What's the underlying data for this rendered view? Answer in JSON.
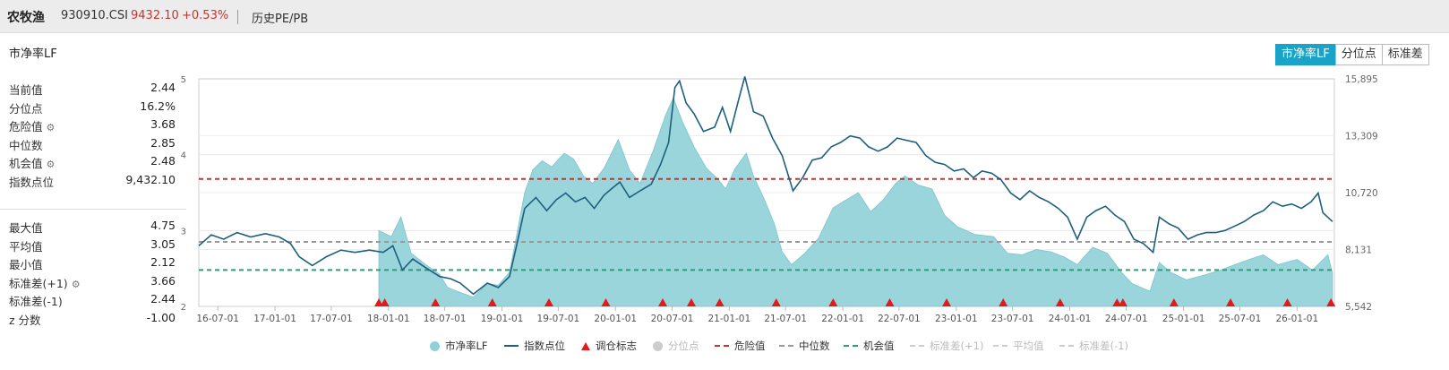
{
  "header": {
    "index_name": "农牧渔",
    "index_code": "930910.CSI",
    "price": "9432.10",
    "change": "+0.53%",
    "history_label": "历史PE/PB"
  },
  "page_title": "市净率LF",
  "tabs": [
    {
      "label": "市净率LF",
      "active": true
    },
    {
      "label": "分位点",
      "active": false
    },
    {
      "label": "标准差",
      "active": false
    }
  ],
  "stats_top": [
    {
      "label": "当前值",
      "value": "2.44",
      "gear": false
    },
    {
      "label": "分位点",
      "value": "16.2%",
      "gear": false
    },
    {
      "label": "危险值",
      "value": "3.68",
      "gear": true
    },
    {
      "label": "中位数",
      "value": "2.85",
      "gear": false
    },
    {
      "label": "机会值",
      "value": "2.48",
      "gear": true
    },
    {
      "label": "指数点位",
      "value": "9,432.10",
      "gear": false
    }
  ],
  "stats_bottom": [
    {
      "label": "最大值",
      "value": "4.75",
      "gear": false
    },
    {
      "label": "平均值",
      "value": "3.05",
      "gear": false
    },
    {
      "label": "最小值",
      "value": "2.12",
      "gear": false
    },
    {
      "label": "标准差(+1)",
      "value": "3.66",
      "gear": true
    },
    {
      "label": "标准差(-1)",
      "value": "2.44",
      "gear": false
    },
    {
      "label": "z 分数",
      "value": "-1.00",
      "gear": false
    }
  ],
  "gear_glyph": "⚙",
  "chart_data": {
    "type": "line",
    "x_ticks": [
      "16-07-01",
      "17-01-01",
      "17-07-01",
      "18-01-01",
      "18-07-01",
      "19-01-01",
      "19-07-01",
      "20-01-01",
      "20-07-01",
      "21-01-01",
      "21-07-01",
      "22-01-01",
      "22-07-01",
      "23-01-01",
      "23-07-01",
      "24-01-01",
      "24-07-01",
      "25-01-01",
      "25-07-01",
      "26-01-01"
    ],
    "x_range": [
      "2016-05-01",
      "2026-05-01"
    ],
    "y_left_ticks": [
      "5",
      "4",
      "3",
      "2"
    ],
    "y_left_range": [
      2,
      5
    ],
    "y_right_ticks": [
      "15,895",
      "13,309",
      "10,720",
      "8,131",
      "5,542"
    ],
    "y_right_range": [
      5542,
      15895
    ],
    "reference_lines": [
      {
        "name": "危险值",
        "value": 3.68,
        "color": "#c23531"
      },
      {
        "name": "中位数",
        "value": 2.85,
        "color": "#999999"
      },
      {
        "name": "机会值",
        "value": 2.48,
        "color": "#2e9f74"
      }
    ],
    "pb_series": {
      "name": "市净率LF",
      "color": "#8fd0d8",
      "points": [
        [
          "2017-12-01",
          3.0
        ],
        [
          "2018-01-10",
          2.92
        ],
        [
          "2018-02-10",
          3.18
        ],
        [
          "2018-03-15",
          2.7
        ],
        [
          "2018-05-01",
          2.55
        ],
        [
          "2018-06-15",
          2.42
        ],
        [
          "2018-07-10",
          2.25
        ],
        [
          "2018-08-10",
          2.2
        ],
        [
          "2018-10-01",
          2.12
        ],
        [
          "2018-11-15",
          2.3
        ],
        [
          "2018-12-20",
          2.28
        ],
        [
          "2019-01-25",
          2.45
        ],
        [
          "2019-02-20",
          3.0
        ],
        [
          "2019-03-15",
          3.5
        ],
        [
          "2019-04-10",
          3.8
        ],
        [
          "2019-05-10",
          3.92
        ],
        [
          "2019-06-10",
          3.84
        ],
        [
          "2019-07-20",
          4.02
        ],
        [
          "2019-08-20",
          3.94
        ],
        [
          "2019-09-20",
          3.72
        ],
        [
          "2019-10-20",
          3.62
        ],
        [
          "2019-11-25",
          3.82
        ],
        [
          "2020-01-10",
          4.2
        ],
        [
          "2020-02-15",
          3.8
        ],
        [
          "2020-03-20",
          3.62
        ],
        [
          "2020-05-01",
          4.05
        ],
        [
          "2020-06-10",
          4.52
        ],
        [
          "2020-07-05",
          4.75
        ],
        [
          "2020-08-05",
          4.42
        ],
        [
          "2020-09-10",
          4.1
        ],
        [
          "2020-10-20",
          3.82
        ],
        [
          "2020-11-25",
          3.68
        ],
        [
          "2020-12-20",
          3.55
        ],
        [
          "2021-01-20",
          3.82
        ],
        [
          "2021-02-25",
          4.02
        ],
        [
          "2021-03-20",
          3.72
        ],
        [
          "2021-04-25",
          3.4
        ],
        [
          "2021-05-25",
          3.1
        ],
        [
          "2021-06-20",
          2.72
        ],
        [
          "2021-07-20",
          2.55
        ],
        [
          "2021-09-01",
          2.7
        ],
        [
          "2021-10-15",
          2.9
        ],
        [
          "2021-12-01",
          3.3
        ],
        [
          "2022-01-10",
          3.4
        ],
        [
          "2022-02-20",
          3.5
        ],
        [
          "2022-04-01",
          3.25
        ],
        [
          "2022-05-10",
          3.4
        ],
        [
          "2022-06-20",
          3.62
        ],
        [
          "2022-07-20",
          3.72
        ],
        [
          "2022-09-01",
          3.6
        ],
        [
          "2022-10-15",
          3.55
        ],
        [
          "2022-11-25",
          3.2
        ],
        [
          "2023-01-05",
          3.05
        ],
        [
          "2023-03-01",
          2.95
        ],
        [
          "2023-05-01",
          2.92
        ],
        [
          "2023-06-15",
          2.7
        ],
        [
          "2023-08-01",
          2.68
        ],
        [
          "2023-09-15",
          2.75
        ],
        [
          "2023-11-01",
          2.72
        ],
        [
          "2023-12-15",
          2.65
        ],
        [
          "2024-01-25",
          2.55
        ],
        [
          "2024-03-15",
          2.78
        ],
        [
          "2024-05-01",
          2.7
        ],
        [
          "2024-06-15",
          2.45
        ],
        [
          "2024-07-20",
          2.3
        ],
        [
          "2024-09-15",
          2.2
        ],
        [
          "2024-10-15",
          2.58
        ],
        [
          "2024-11-20",
          2.45
        ],
        [
          "2025-01-10",
          2.35
        ],
        [
          "2025-03-15",
          2.42
        ],
        [
          "2025-05-01",
          2.48
        ],
        [
          "2025-06-15",
          2.55
        ],
        [
          "2025-08-01",
          2.62
        ],
        [
          "2025-09-15",
          2.68
        ],
        [
          "2025-11-01",
          2.55
        ],
        [
          "2026-01-01",
          2.62
        ],
        [
          "2026-02-20",
          2.48
        ],
        [
          "2026-04-10",
          2.68
        ],
        [
          "2026-04-25",
          2.44
        ]
      ]
    },
    "index_series": {
      "name": "指数点位",
      "color": "#1d5f7e",
      "points": [
        [
          "2016-05-01",
          8300
        ],
        [
          "2016-06-10",
          8800
        ],
        [
          "2016-07-20",
          8600
        ],
        [
          "2016-09-01",
          8900
        ],
        [
          "2016-10-15",
          8700
        ],
        [
          "2016-12-01",
          8850
        ],
        [
          "2017-01-15",
          8700
        ],
        [
          "2017-02-20",
          8400
        ],
        [
          "2017-03-20",
          7800
        ],
        [
          "2017-05-01",
          7400
        ],
        [
          "2017-06-15",
          7800
        ],
        [
          "2017-08-01",
          8100
        ],
        [
          "2017-09-15",
          8000
        ],
        [
          "2017-11-01",
          8100
        ],
        [
          "2017-12-15",
          8000
        ],
        [
          "2018-01-15",
          8300
        ],
        [
          "2018-02-15",
          7200
        ],
        [
          "2018-03-20",
          7700
        ],
        [
          "2018-05-01",
          7300
        ],
        [
          "2018-06-15",
          6900
        ],
        [
          "2018-07-20",
          6800
        ],
        [
          "2018-08-20",
          6600
        ],
        [
          "2018-10-01",
          6100
        ],
        [
          "2018-11-15",
          6600
        ],
        [
          "2018-12-20",
          6400
        ],
        [
          "2019-01-25",
          6900
        ],
        [
          "2019-02-20",
          8500
        ],
        [
          "2019-03-15",
          10000
        ],
        [
          "2019-04-20",
          10500
        ],
        [
          "2019-05-25",
          9900
        ],
        [
          "2019-06-25",
          10400
        ],
        [
          "2019-07-25",
          10700
        ],
        [
          "2019-08-25",
          10300
        ],
        [
          "2019-09-25",
          10500
        ],
        [
          "2019-10-25",
          10000
        ],
        [
          "2019-11-25",
          10600
        ],
        [
          "2019-12-20",
          10900
        ],
        [
          "2020-01-15",
          11200
        ],
        [
          "2020-02-15",
          10500
        ],
        [
          "2020-03-20",
          10800
        ],
        [
          "2020-04-25",
          11100
        ],
        [
          "2020-05-25",
          12000
        ],
        [
          "2020-06-20",
          13000
        ],
        [
          "2020-07-10",
          15500
        ],
        [
          "2020-07-25",
          15800
        ],
        [
          "2020-08-15",
          14800
        ],
        [
          "2020-09-10",
          14300
        ],
        [
          "2020-10-10",
          13500
        ],
        [
          "2020-11-15",
          13700
        ],
        [
          "2020-12-10",
          14600
        ],
        [
          "2021-01-05",
          13500
        ],
        [
          "2021-02-01",
          15000
        ],
        [
          "2021-02-20",
          16000
        ],
        [
          "2021-03-20",
          14400
        ],
        [
          "2021-04-20",
          14200
        ],
        [
          "2021-05-20",
          13200
        ],
        [
          "2021-06-20",
          12400
        ],
        [
          "2021-07-25",
          10800
        ],
        [
          "2021-08-25",
          11400
        ],
        [
          "2021-09-25",
          12200
        ],
        [
          "2021-10-25",
          12300
        ],
        [
          "2021-11-25",
          12800
        ],
        [
          "2021-12-25",
          13000
        ],
        [
          "2022-01-25",
          13300
        ],
        [
          "2022-02-25",
          13200
        ],
        [
          "2022-03-25",
          12800
        ],
        [
          "2022-04-25",
          12600
        ],
        [
          "2022-05-25",
          12800
        ],
        [
          "2022-06-25",
          13200
        ],
        [
          "2022-07-25",
          13100
        ],
        [
          "2022-08-25",
          13000
        ],
        [
          "2022-09-25",
          12400
        ],
        [
          "2022-10-25",
          12100
        ],
        [
          "2022-11-25",
          12000
        ],
        [
          "2022-12-25",
          11700
        ],
        [
          "2023-01-25",
          11800
        ],
        [
          "2023-02-25",
          11400
        ],
        [
          "2023-03-25",
          11700
        ],
        [
          "2023-04-25",
          11600
        ],
        [
          "2023-05-25",
          11300
        ],
        [
          "2023-06-25",
          10700
        ],
        [
          "2023-07-25",
          10400
        ],
        [
          "2023-08-25",
          10800
        ],
        [
          "2023-09-25",
          10500
        ],
        [
          "2023-10-25",
          10300
        ],
        [
          "2023-11-25",
          10000
        ],
        [
          "2023-12-25",
          9600
        ],
        [
          "2024-01-25",
          8600
        ],
        [
          "2024-02-25",
          9600
        ],
        [
          "2024-03-25",
          9900
        ],
        [
          "2024-04-25",
          10100
        ],
        [
          "2024-05-25",
          9700
        ],
        [
          "2024-06-25",
          9400
        ],
        [
          "2024-07-25",
          8600
        ],
        [
          "2024-08-25",
          8400
        ],
        [
          "2024-09-25",
          8000
        ],
        [
          "2024-10-15",
          9600
        ],
        [
          "2024-11-15",
          9300
        ],
        [
          "2024-12-15",
          9100
        ],
        [
          "2025-01-15",
          8600
        ],
        [
          "2025-02-15",
          8800
        ],
        [
          "2025-03-15",
          8900
        ],
        [
          "2025-04-15",
          8900
        ],
        [
          "2025-05-15",
          9000
        ],
        [
          "2025-06-15",
          9200
        ],
        [
          "2025-07-15",
          9400
        ],
        [
          "2025-08-15",
          9700
        ],
        [
          "2025-09-15",
          9900
        ],
        [
          "2025-10-15",
          10300
        ],
        [
          "2025-11-15",
          10100
        ],
        [
          "2025-12-15",
          10200
        ],
        [
          "2026-01-15",
          10000
        ],
        [
          "2026-02-15",
          10300
        ],
        [
          "2026-03-10",
          10700
        ],
        [
          "2026-03-25",
          9800
        ],
        [
          "2026-04-25",
          9400
        ]
      ]
    },
    "rebalance_markers": {
      "name": "调仓标志",
      "color": "#e11a1a",
      "dates": [
        "2017-12-01",
        "2017-12-20",
        "2018-06-01",
        "2018-12-01",
        "2019-06-01",
        "2019-12-01",
        "2020-06-01",
        "2020-09-01",
        "2020-12-01",
        "2021-06-01",
        "2021-12-01",
        "2022-06-01",
        "2022-12-01",
        "2023-06-01",
        "2023-12-01",
        "2024-06-01",
        "2024-06-20",
        "2024-12-01",
        "2025-06-01",
        "2025-12-01",
        "2026-04-20"
      ]
    }
  },
  "legend": [
    {
      "label": "市净率LF",
      "type": "dot",
      "color": "#8fd0d8",
      "enabled": true
    },
    {
      "label": "指数点位",
      "type": "line",
      "color": "#1d5f7e",
      "enabled": true
    },
    {
      "label": "调仓标志",
      "type": "triangle",
      "color": "#e11a1a",
      "enabled": true
    },
    {
      "label": "分位点",
      "type": "dot",
      "color": "#cccccc",
      "enabled": false
    },
    {
      "label": "危险值",
      "type": "dash",
      "color": "#c23531",
      "enabled": true
    },
    {
      "label": "中位数",
      "type": "dash",
      "color": "#999999",
      "enabled": true
    },
    {
      "label": "机会值",
      "type": "dash",
      "color": "#2e9f74",
      "enabled": true
    },
    {
      "label": "标准差(+1)",
      "type": "dash",
      "color": "#cccccc",
      "enabled": false
    },
    {
      "label": "平均值",
      "type": "dash",
      "color": "#cccccc",
      "enabled": false
    },
    {
      "label": "标准差(-1)",
      "type": "dash",
      "color": "#cccccc",
      "enabled": false
    }
  ]
}
